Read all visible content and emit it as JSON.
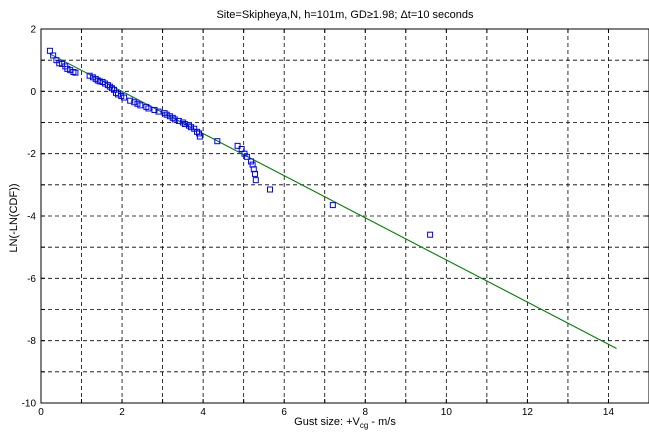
{
  "chart_data": {
    "type": "scatter",
    "title": "Site=Skipheya,N, h=101m, GD≥1.98; Δt=10 seconds",
    "xlabel_prefix": "Gust size: +V",
    "xlabel_sub": "cg",
    "xlabel_suffix": " - m/s",
    "ylabel": "LN(-LN(CDF))",
    "xlim": [
      0,
      15
    ],
    "ylim": [
      -10,
      2
    ],
    "xticks": [
      "0",
      "2",
      "4",
      "6",
      "8",
      "10",
      "12",
      "14"
    ],
    "yticks": [
      "-10",
      "-8",
      "-6",
      "-4",
      "-2",
      "0",
      "2"
    ],
    "grid": true,
    "colors": {
      "points": "#0000ff",
      "fit_line": "#008000",
      "axes": "#000000",
      "grid": "#000000"
    },
    "series": [
      {
        "kind": "markers",
        "marker": "square",
        "x": [
          0.22,
          0.3,
          0.38,
          0.45,
          0.52,
          0.6,
          0.65,
          0.72,
          0.8,
          0.85,
          1.2,
          1.28,
          1.35,
          1.4,
          1.45,
          1.52,
          1.58,
          1.65,
          1.7,
          1.75,
          1.8,
          1.85,
          1.9,
          1.98,
          2.05,
          2.2,
          2.3,
          2.38,
          2.45,
          2.6,
          2.65,
          2.8,
          2.9,
          3.05,
          3.1,
          3.18,
          3.25,
          3.3,
          3.4,
          3.5,
          3.55,
          3.65,
          3.7,
          3.78,
          3.85,
          3.9,
          3.92,
          4.35,
          4.85,
          4.95,
          5.02,
          5.08,
          5.18,
          5.22,
          5.25,
          5.28,
          5.3,
          5.65,
          7.2,
          9.6
        ],
        "y": [
          1.3,
          1.15,
          1.0,
          0.9,
          0.88,
          0.8,
          0.72,
          0.68,
          0.62,
          0.6,
          0.5,
          0.45,
          0.4,
          0.35,
          0.32,
          0.3,
          0.25,
          0.2,
          0.15,
          0.1,
          0.05,
          -0.05,
          -0.1,
          -0.15,
          -0.2,
          -0.3,
          -0.35,
          -0.4,
          -0.45,
          -0.5,
          -0.55,
          -0.6,
          -0.65,
          -0.7,
          -0.75,
          -0.8,
          -0.85,
          -0.9,
          -0.95,
          -1.0,
          -1.05,
          -1.1,
          -1.15,
          -1.2,
          -1.3,
          -1.35,
          -1.45,
          -1.6,
          -1.75,
          -1.85,
          -2.0,
          -2.1,
          -2.25,
          -2.35,
          -2.5,
          -2.65,
          -2.85,
          -3.15,
          -3.65,
          -4.6
        ]
      },
      {
        "kind": "line",
        "x": [
          0.22,
          14.2
        ],
        "y": [
          1.2,
          -8.25
        ]
      }
    ]
  }
}
